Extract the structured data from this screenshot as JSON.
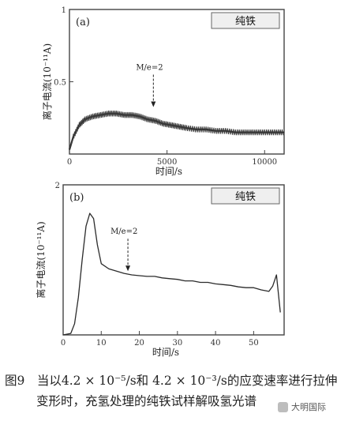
{
  "chart_data": [
    {
      "type": "line",
      "panel_label": "(a)",
      "legend_tag": "纯铁",
      "xlim": [
        0,
        11000
      ],
      "ylim": [
        0,
        1
      ],
      "x_ticks": [
        "0",
        "5000",
        "10000"
      ],
      "y_ticks": [
        "1",
        "0.5"
      ],
      "ylabel": "离子电流(10⁻¹¹A)",
      "xlabel": "时间/s",
      "annotation": "M/e=2",
      "annotation_point": [
        4300,
        0.32
      ],
      "x": [
        0,
        200,
        500,
        800,
        1200,
        1600,
        2000,
        2400,
        2800,
        3200,
        3600,
        4000,
        4400,
        4800,
        5200,
        5600,
        6000,
        6500,
        7000,
        7500,
        8000,
        8500,
        9000,
        9500,
        10000,
        10500,
        11000
      ],
      "y": [
        0.03,
        0.12,
        0.2,
        0.24,
        0.26,
        0.27,
        0.28,
        0.28,
        0.27,
        0.27,
        0.26,
        0.24,
        0.23,
        0.21,
        0.2,
        0.19,
        0.18,
        0.17,
        0.17,
        0.16,
        0.16,
        0.15,
        0.15,
        0.15,
        0.15,
        0.15,
        0.15
      ]
    },
    {
      "type": "line",
      "panel_label": "(b)",
      "legend_tag": "纯铁",
      "xlim": [
        0,
        58
      ],
      "ylim": [
        0,
        2
      ],
      "x_ticks": [
        "0",
        "10",
        "20",
        "30",
        "40",
        "50"
      ],
      "y_ticks": [
        "2"
      ],
      "ylabel": "离子电流(10⁻¹¹A)",
      "xlabel": "时间/s",
      "annotation": "M/e=2",
      "annotation_point": [
        17,
        0.84
      ],
      "x": [
        0,
        2,
        3,
        4,
        5,
        6,
        7,
        8,
        9,
        10,
        12,
        14,
        16,
        18,
        20,
        22,
        24,
        26,
        28,
        30,
        32,
        34,
        36,
        38,
        40,
        42,
        44,
        46,
        48,
        50,
        52,
        54,
        55,
        56,
        57
      ],
      "y": [
        0,
        0.02,
        0.15,
        0.5,
        1.0,
        1.45,
        1.62,
        1.55,
        1.2,
        0.95,
        0.88,
        0.85,
        0.82,
        0.8,
        0.79,
        0.78,
        0.78,
        0.76,
        0.75,
        0.74,
        0.72,
        0.72,
        0.7,
        0.7,
        0.68,
        0.67,
        0.66,
        0.64,
        0.63,
        0.63,
        0.6,
        0.58,
        0.65,
        0.8,
        0.3
      ]
    }
  ],
  "caption": {
    "line1": "图9　当以4.2 × 10⁻⁵/s和 4.2 × 10⁻³/s的应变速率进行拉伸",
    "line2": "变形时，充氢处理的纯铁试样解吸氢光谱"
  },
  "watermark": "大明国际"
}
